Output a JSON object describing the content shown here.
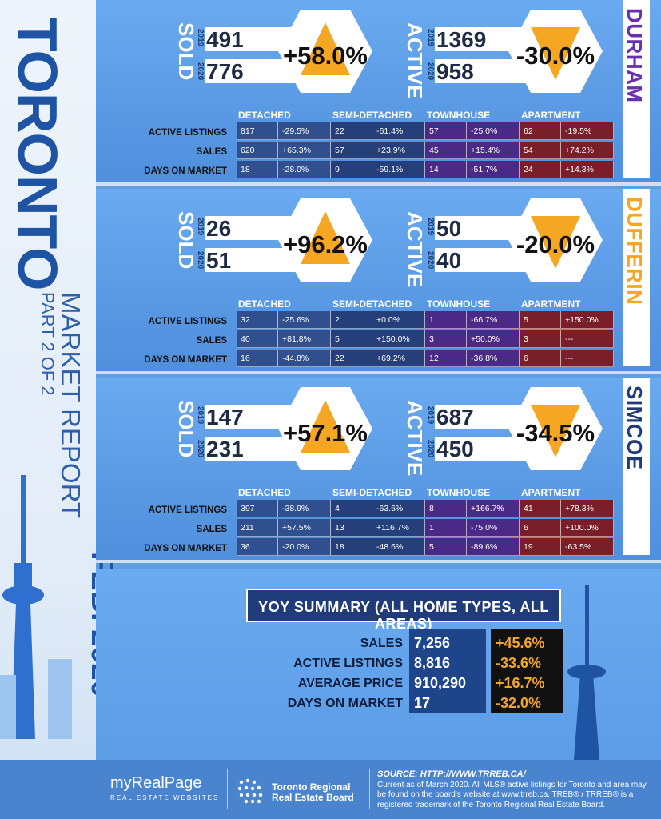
{
  "side": {
    "title": "TORONTO",
    "subtitle": "MARKET REPORT",
    "part": "PART 2 OF 2",
    "date": "FEB. 2020"
  },
  "labels": {
    "sold": "SOLD",
    "active": "ACTIVE",
    "year_a": "2019",
    "year_b": "2020",
    "col_detached": "DETACHED",
    "col_semi": "SEMI-DETACHED",
    "col_town": "TOWNHOUSE",
    "col_apt": "APARTMENT",
    "row_active": "ACTIVE LISTINGS",
    "row_sales": "SALES",
    "row_dom": "DAYS ON MARKET"
  },
  "colors": {
    "detached": "#2f4f8f",
    "semi": "#243f7a",
    "town": "#4a2a86",
    "apt": "#7a1f2a",
    "up": "#f5a623"
  },
  "regions": [
    {
      "name": "DURHAM",
      "name_color": "#6a2fb0",
      "sold_2019": "491",
      "sold_2020": "776",
      "sold_pct": "+58.0%",
      "sold_dir": "up",
      "active_2019": "1369",
      "active_2020": "958",
      "active_pct": "-30.0%",
      "active_dir": "down",
      "table": [
        [
          "817",
          "-29.5%",
          "22",
          "-61.4%",
          "57",
          "-25.0%",
          "62",
          "-19.5%"
        ],
        [
          "620",
          "+65.3%",
          "57",
          "+23.9%",
          "45",
          "+15.4%",
          "54",
          "+74.2%"
        ],
        [
          "18",
          "-28.0%",
          "9",
          "-59.1%",
          "14",
          "-51.7%",
          "24",
          "+14.3%"
        ]
      ]
    },
    {
      "name": "DUFFERIN",
      "name_color": "#f5a623",
      "sold_2019": "26",
      "sold_2020": "51",
      "sold_pct": "+96.2%",
      "sold_dir": "up",
      "active_2019": "50",
      "active_2020": "40",
      "active_pct": "-20.0%",
      "active_dir": "down",
      "table": [
        [
          "32",
          "-25.6%",
          "2",
          "+0.0%",
          "1",
          "-66.7%",
          "5",
          "+150.0%"
        ],
        [
          "40",
          "+81.8%",
          "5",
          "+150.0%",
          "3",
          "+50.0%",
          "3",
          "---"
        ],
        [
          "16",
          "-44.8%",
          "22",
          "+69.2%",
          "12",
          "-36.8%",
          "6",
          "---"
        ]
      ]
    },
    {
      "name": "SIMCOE",
      "name_color": "#1f3b7a",
      "sold_2019": "147",
      "sold_2020": "231",
      "sold_pct": "+57.1%",
      "sold_dir": "up",
      "active_2019": "687",
      "active_2020": "450",
      "active_pct": "-34.5%",
      "active_dir": "down",
      "table": [
        [
          "397",
          "-38.9%",
          "4",
          "-63.6%",
          "8",
          "+166.7%",
          "41",
          "+78.3%"
        ],
        [
          "211",
          "+57.5%",
          "13",
          "+116.7%",
          "1",
          "-75.0%",
          "6",
          "+100.0%"
        ],
        [
          "36",
          "-20.0%",
          "18",
          "-48.6%",
          "5",
          "-89.6%",
          "19",
          "-63.5%"
        ]
      ]
    }
  ],
  "summary": {
    "title": "YOY SUMMARY (ALL HOME TYPES, ALL AREAS)",
    "rows": [
      {
        "label": "SALES",
        "value": "7,256",
        "pct": "+45.6%"
      },
      {
        "label": "ACTIVE LISTINGS",
        "value": "8,816",
        "pct": "-33.6%"
      },
      {
        "label": "AVERAGE PRICE",
        "value": "910,290",
        "pct": "+16.7%"
      },
      {
        "label": "DAYS ON MARKET",
        "value": "17",
        "pct": "-32.0%"
      }
    ]
  },
  "footer": {
    "brand": "myRealPage",
    "brand_tag": "REAL ESTATE WEBSITES",
    "board_line1": "Toronto Regional",
    "board_line2": "Real Estate Board",
    "source": "SOURCE: HTTP://WWW.TRREB.CA/",
    "note": "Current as of March 2020.  All MLS® active listings for Toronto and area may be found on the board's website at www.trreb.ca. TREB® / TRREB® is a registered trademark of the Toronto Regional Real Estate Board."
  }
}
